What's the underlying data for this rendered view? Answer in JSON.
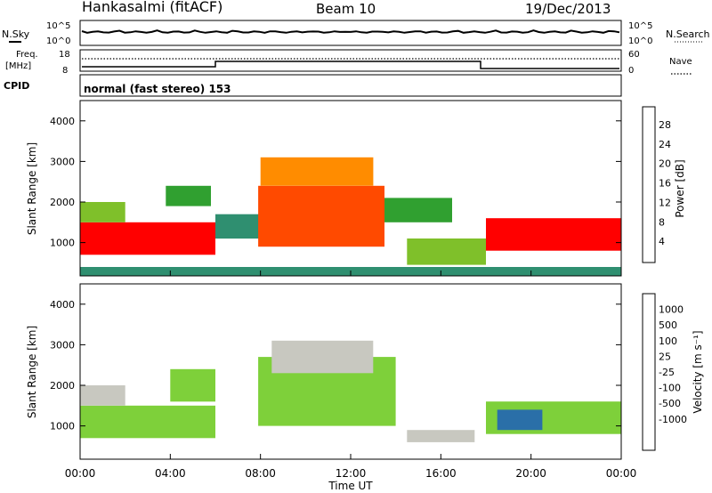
{
  "header": {
    "station": "Hankasalmi (fitACF)",
    "beam": "Beam 10",
    "date": "19/Dec/2013"
  },
  "top_strip": {
    "nsky_label": "N.Sky",
    "nsearch_label": "N.Search",
    "y_ticks": [
      "10^5",
      "10^0"
    ],
    "freq_label": "Freq.",
    "freq_unit": "[MHz]",
    "freq_ticks": [
      "18",
      "8"
    ],
    "nave_label": "Nave",
    "nave_ticks": [
      "60",
      "0"
    ],
    "cpid_label": "CPID",
    "cpid_text": "normal (fast stereo) 153"
  },
  "axes": {
    "ylabel": "Slant Range [km]",
    "xlabel": "Time UT",
    "y_ticks": [
      1000,
      2000,
      3000,
      4000
    ],
    "x_ticks": [
      "00:00",
      "04:00",
      "08:00",
      "12:00",
      "16:00",
      "20:00",
      "00:00"
    ]
  },
  "power_scale": {
    "title": "Power [dB]",
    "ticks": [
      "28",
      "24",
      "20",
      "16",
      "12",
      "8",
      "4"
    ],
    "colors": [
      "#ff0000",
      "#ff4a00",
      "#ff8c00",
      "#ffc200",
      "#7fc02a",
      "#30a030",
      "#2f8f70",
      "#2a5fb0",
      "#0000ff"
    ]
  },
  "velocity_scale": {
    "title": "Velocity [m s⁻¹]",
    "ticks": [
      "1000",
      "500",
      "100",
      "25",
      "-25",
      "-100",
      "-500",
      "-1000"
    ],
    "colors": [
      "#1a3fb4",
      "#2a6fa8",
      "#2f8a6a",
      "#3ea33e",
      "#7ed03a",
      "#c8c8c0",
      "#ffa500",
      "#ff7000",
      "#ff3000",
      "#ff0000"
    ]
  },
  "chart_data": {
    "type": "heatmap",
    "title": "Hankasalmi (fitACF) Beam 10 19/Dec/2013",
    "xlabel": "Time UT",
    "ylabel": "Slant Range [km]",
    "xlim_hours": [
      0,
      24
    ],
    "ylim_km": [
      180,
      4500
    ],
    "panels": [
      {
        "name": "Power [dB]",
        "scale": [
          0,
          30
        ],
        "regions": [
          {
            "t0": 0.0,
            "t1": 6.0,
            "r0": 700,
            "r1": 1500,
            "value": 27
          },
          {
            "t0": 0.0,
            "t1": 2.0,
            "r0": 1500,
            "r1": 2000,
            "value": 14
          },
          {
            "t0": 3.8,
            "t1": 5.8,
            "r0": 1900,
            "r1": 2400,
            "value": 10
          },
          {
            "t0": 6.0,
            "t1": 8.0,
            "r0": 1100,
            "r1": 1700,
            "value": 9
          },
          {
            "t0": 7.9,
            "t1": 13.5,
            "r0": 900,
            "r1": 2400,
            "value": 26
          },
          {
            "t0": 8.0,
            "t1": 13.0,
            "r0": 2400,
            "r1": 3100,
            "value": 20
          },
          {
            "t0": 13.5,
            "t1": 16.5,
            "r0": 1500,
            "r1": 2100,
            "value": 10
          },
          {
            "t0": 14.5,
            "t1": 18.0,
            "r0": 450,
            "r1": 1100,
            "value": 15
          },
          {
            "t0": 18.0,
            "t1": 24.0,
            "r0": 800,
            "r1": 1600,
            "value": 27
          },
          {
            "t0": 0.0,
            "t1": 24.0,
            "r0": 180,
            "r1": 400,
            "value": 8
          }
        ]
      },
      {
        "name": "Velocity [m s⁻¹]",
        "scale": [
          -1000,
          1000
        ],
        "regions": [
          {
            "t0": 0.0,
            "t1": 6.0,
            "r0": 700,
            "r1": 1500,
            "value": 150
          },
          {
            "t0": 0.0,
            "t1": 2.0,
            "r0": 1500,
            "r1": 2000,
            "value": -80
          },
          {
            "t0": 4.0,
            "t1": 6.0,
            "r0": 1600,
            "r1": 2400,
            "value": 0
          },
          {
            "t0": 7.9,
            "t1": 14.0,
            "r0": 1000,
            "r1": 2700,
            "value": 0
          },
          {
            "t0": 8.5,
            "t1": 13.0,
            "r0": 2300,
            "r1": 3100,
            "value": -200
          },
          {
            "t0": 14.5,
            "t1": 17.5,
            "r0": 600,
            "r1": 900,
            "value": -100
          },
          {
            "t0": 18.0,
            "t1": 24.0,
            "r0": 800,
            "r1": 1600,
            "value": 120
          },
          {
            "t0": 18.5,
            "t1": 20.5,
            "r0": 900,
            "r1": 1400,
            "value": 600
          }
        ]
      }
    ]
  }
}
